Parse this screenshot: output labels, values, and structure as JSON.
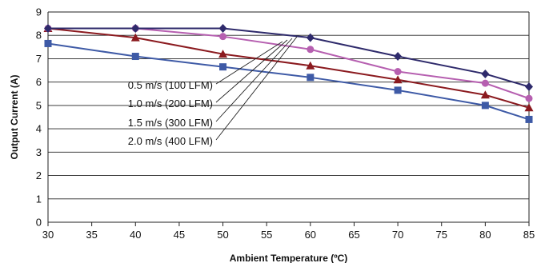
{
  "chart_data": {
    "type": "line",
    "title": "",
    "xlabel": "Ambient Temperature (ºC)",
    "ylabel": "Output Current (A)",
    "xlim": [
      30,
      85
    ],
    "ylim": [
      0,
      9
    ],
    "xticks": [
      30,
      35,
      40,
      45,
      50,
      55,
      60,
      65,
      70,
      75,
      80,
      85
    ],
    "yticks": [
      0,
      1,
      2,
      3,
      4,
      5,
      6,
      7,
      8,
      9
    ],
    "grid": "horizontal",
    "series": [
      {
        "name": "0.5 m/s (100 LFM)",
        "color": "#3e5aa6",
        "marker": "square",
        "x": [
          30,
          40,
          50,
          60,
          70,
          80,
          85
        ],
        "y": [
          7.65,
          7.1,
          6.65,
          6.2,
          5.65,
          5.0,
          4.4
        ]
      },
      {
        "name": "1.0 m/s (200 LFM)",
        "color": "#8b1a1f",
        "marker": "triangle",
        "x": [
          30,
          40,
          50,
          60,
          70,
          80,
          85
        ],
        "y": [
          8.3,
          7.9,
          7.2,
          6.7,
          6.1,
          5.45,
          4.9
        ]
      },
      {
        "name": "1.5 m/s (300 LFM)",
        "color": "#b65fb0",
        "marker": "circle",
        "x": [
          30,
          40,
          50,
          60,
          70,
          80,
          85
        ],
        "y": [
          8.3,
          8.3,
          7.95,
          7.4,
          6.45,
          5.95,
          5.3
        ]
      },
      {
        "name": "2.0 m/s (400 LFM)",
        "color": "#2e2a6b",
        "marker": "diamond",
        "x": [
          30,
          40,
          50,
          60,
          70,
          80,
          85
        ],
        "y": [
          8.3,
          8.3,
          8.3,
          7.9,
          7.1,
          6.35,
          5.8
        ]
      }
    ],
    "legend": "center-left, labels with leader lines to curves"
  }
}
